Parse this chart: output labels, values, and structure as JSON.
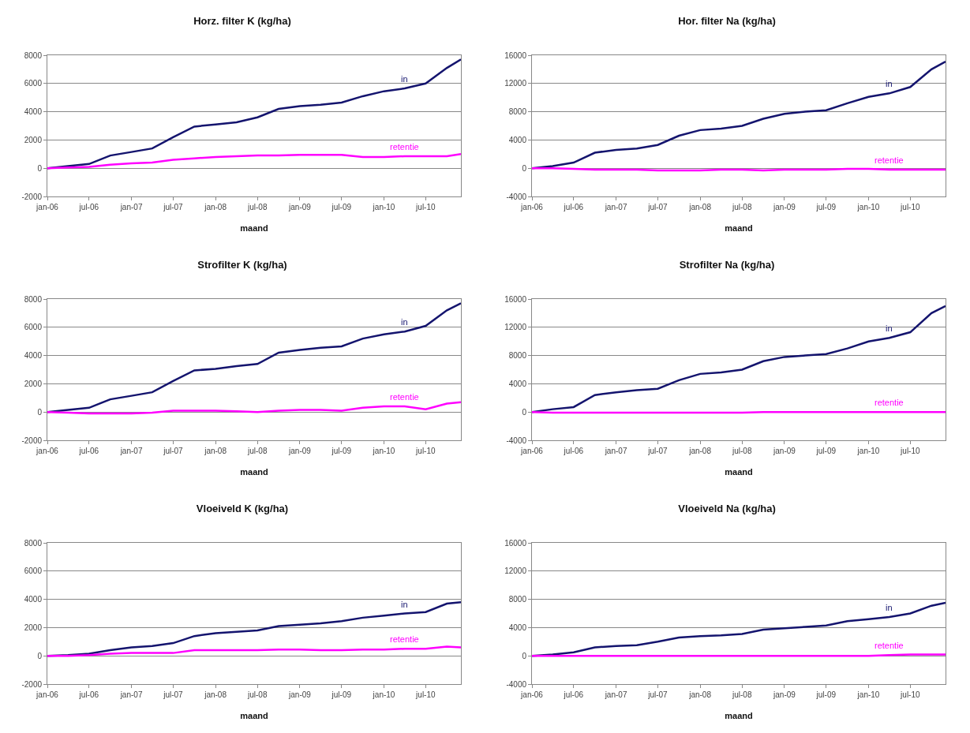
{
  "chart_data": [
    {
      "type": "line",
      "title": "Horz. filter K (kg/ha)",
      "xlabel": "maand",
      "grid": "y",
      "x": [
        "2006-01",
        "2006-04",
        "2006-07",
        "2006-10",
        "2007-01",
        "2007-04",
        "2007-07",
        "2007-10",
        "2008-01",
        "2008-04",
        "2008-07",
        "2008-10",
        "2009-01",
        "2009-04",
        "2009-07",
        "2009-10",
        "2010-01",
        "2010-04",
        "2010-07",
        "2010-10",
        "2010-12"
      ],
      "xlim": [
        "2006-01",
        "2010-12"
      ],
      "xticks": [
        {
          "value": "2006-01",
          "label": "jan-06"
        },
        {
          "value": "2006-07",
          "label": "jul-06"
        },
        {
          "value": "2007-01",
          "label": "jan-07"
        },
        {
          "value": "2007-07",
          "label": "jul-07"
        },
        {
          "value": "2008-01",
          "label": "jan-08"
        },
        {
          "value": "2008-07",
          "label": "jul-08"
        },
        {
          "value": "2009-01",
          "label": "jan-09"
        },
        {
          "value": "2009-07",
          "label": "jul-09"
        },
        {
          "value": "2010-01",
          "label": "jan-10"
        },
        {
          "value": "2010-07",
          "label": "jul-10"
        }
      ],
      "ylim": [
        -2000,
        8000
      ],
      "yticks": [
        -2000,
        0,
        2000,
        4000,
        6000,
        8000
      ],
      "series": [
        {
          "name": "in",
          "color": "#14146e",
          "values": [
            0,
            150,
            300,
            900,
            1150,
            1400,
            2200,
            2950,
            3100,
            3250,
            3600,
            4200,
            4400,
            4500,
            4650,
            5100,
            5450,
            5650,
            6000,
            7100,
            7700
          ]
        },
        {
          "name": "retentie",
          "color": "#ff00ff",
          "values": [
            0,
            50,
            100,
            250,
            350,
            400,
            600,
            700,
            800,
            850,
            900,
            900,
            950,
            950,
            950,
            800,
            800,
            850,
            850,
            850,
            1000
          ]
        }
      ]
    },
    {
      "type": "line",
      "title": "Hor. filter Na (kg/ha)",
      "xlabel": "maand",
      "grid": "y",
      "x": [
        "2006-01",
        "2006-04",
        "2006-07",
        "2006-10",
        "2007-01",
        "2007-04",
        "2007-07",
        "2007-10",
        "2008-01",
        "2008-04",
        "2008-07",
        "2008-10",
        "2009-01",
        "2009-04",
        "2009-07",
        "2009-10",
        "2010-01",
        "2010-04",
        "2010-07",
        "2010-10",
        "2010-12"
      ],
      "xlim": [
        "2006-01",
        "2010-12"
      ],
      "xticks": [
        {
          "value": "2006-01",
          "label": "jan-06"
        },
        {
          "value": "2006-07",
          "label": "jul-06"
        },
        {
          "value": "2007-01",
          "label": "jan-07"
        },
        {
          "value": "2007-07",
          "label": "jul-07"
        },
        {
          "value": "2008-01",
          "label": "jan-08"
        },
        {
          "value": "2008-07",
          "label": "jul-08"
        },
        {
          "value": "2009-01",
          "label": "jan-09"
        },
        {
          "value": "2009-07",
          "label": "jul-09"
        },
        {
          "value": "2010-01",
          "label": "jan-10"
        },
        {
          "value": "2010-07",
          "label": "jul-10"
        }
      ],
      "ylim": [
        -4000,
        16000
      ],
      "yticks": [
        -4000,
        0,
        4000,
        8000,
        12000,
        16000
      ],
      "series": [
        {
          "name": "in",
          "color": "#14146e",
          "values": [
            0,
            300,
            800,
            2200,
            2600,
            2800,
            3300,
            4600,
            5400,
            5600,
            6000,
            7000,
            7700,
            8000,
            8200,
            9200,
            10100,
            10600,
            11500,
            14000,
            15100
          ]
        },
        {
          "name": "retentie",
          "color": "#ff00ff",
          "values": [
            0,
            0,
            -100,
            -200,
            -200,
            -200,
            -300,
            -300,
            -300,
            -200,
            -200,
            -300,
            -200,
            -200,
            -200,
            -100,
            -100,
            -200,
            -200,
            -200,
            -200
          ]
        }
      ]
    },
    {
      "type": "line",
      "title": "Strofilter K (kg/ha)",
      "xlabel": "maand",
      "grid": "y",
      "x": [
        "2006-01",
        "2006-04",
        "2006-07",
        "2006-10",
        "2007-01",
        "2007-04",
        "2007-07",
        "2007-10",
        "2008-01",
        "2008-04",
        "2008-07",
        "2008-10",
        "2009-01",
        "2009-04",
        "2009-07",
        "2009-10",
        "2010-01",
        "2010-04",
        "2010-07",
        "2010-10",
        "2010-12"
      ],
      "xlim": [
        "2006-01",
        "2010-12"
      ],
      "xticks": [
        {
          "value": "2006-01",
          "label": "jan-06"
        },
        {
          "value": "2006-07",
          "label": "jul-06"
        },
        {
          "value": "2007-01",
          "label": "jan-07"
        },
        {
          "value": "2007-07",
          "label": "jul-07"
        },
        {
          "value": "2008-01",
          "label": "jan-08"
        },
        {
          "value": "2008-07",
          "label": "jul-08"
        },
        {
          "value": "2009-01",
          "label": "jan-09"
        },
        {
          "value": "2009-07",
          "label": "jul-09"
        },
        {
          "value": "2010-01",
          "label": "jan-10"
        },
        {
          "value": "2010-07",
          "label": "jul-10"
        }
      ],
      "ylim": [
        -2000,
        8000
      ],
      "yticks": [
        -2000,
        0,
        2000,
        4000,
        6000,
        8000
      ],
      "series": [
        {
          "name": "in",
          "color": "#14146e",
          "values": [
            0,
            150,
            300,
            900,
            1150,
            1400,
            2200,
            2950,
            3050,
            3250,
            3400,
            4200,
            4400,
            4550,
            4650,
            5200,
            5500,
            5700,
            6100,
            7200,
            7700
          ]
        },
        {
          "name": "retentie",
          "color": "#ff00ff",
          "values": [
            0,
            -50,
            -100,
            -100,
            -100,
            -50,
            100,
            100,
            100,
            50,
            0,
            100,
            150,
            150,
            100,
            300,
            400,
            400,
            200,
            600,
            700
          ]
        }
      ]
    },
    {
      "type": "line",
      "title": "Strofilter Na (kg/ha)",
      "xlabel": "maand",
      "grid": "y",
      "x": [
        "2006-01",
        "2006-04",
        "2006-07",
        "2006-10",
        "2007-01",
        "2007-04",
        "2007-07",
        "2007-10",
        "2008-01",
        "2008-04",
        "2008-07",
        "2008-10",
        "2009-01",
        "2009-04",
        "2009-07",
        "2009-10",
        "2010-01",
        "2010-04",
        "2010-07",
        "2010-10",
        "2010-12"
      ],
      "xlim": [
        "2006-01",
        "2010-12"
      ],
      "xticks": [
        {
          "value": "2006-01",
          "label": "jan-06"
        },
        {
          "value": "2006-07",
          "label": "jul-06"
        },
        {
          "value": "2007-01",
          "label": "jan-07"
        },
        {
          "value": "2007-07",
          "label": "jul-07"
        },
        {
          "value": "2008-01",
          "label": "jan-08"
        },
        {
          "value": "2008-07",
          "label": "jul-08"
        },
        {
          "value": "2009-01",
          "label": "jan-09"
        },
        {
          "value": "2009-07",
          "label": "jul-09"
        },
        {
          "value": "2010-01",
          "label": "jan-10"
        },
        {
          "value": "2010-07",
          "label": "jul-10"
        }
      ],
      "ylim": [
        -4000,
        16000
      ],
      "yticks": [
        -4000,
        0,
        4000,
        8000,
        12000,
        16000
      ],
      "series": [
        {
          "name": "in",
          "color": "#14146e",
          "values": [
            0,
            400,
            700,
            2400,
            2800,
            3100,
            3300,
            4500,
            5400,
            5600,
            6000,
            7200,
            7800,
            8000,
            8200,
            9000,
            10000,
            10500,
            11300,
            14000,
            15000
          ]
        },
        {
          "name": "retentie",
          "color": "#ff00ff",
          "values": [
            0,
            -100,
            -100,
            -100,
            -100,
            -100,
            -100,
            -100,
            -100,
            -100,
            -100,
            0,
            0,
            0,
            0,
            0,
            0,
            0,
            0,
            0,
            0
          ]
        }
      ]
    },
    {
      "type": "line",
      "title": "Vloeiveld K (kg/ha)",
      "xlabel": "maand",
      "grid": "y",
      "x": [
        "2006-01",
        "2006-04",
        "2006-07",
        "2006-10",
        "2007-01",
        "2007-04",
        "2007-07",
        "2007-10",
        "2008-01",
        "2008-04",
        "2008-07",
        "2008-10",
        "2009-01",
        "2009-04",
        "2009-07",
        "2009-10",
        "2010-01",
        "2010-04",
        "2010-07",
        "2010-10",
        "2010-12"
      ],
      "xlim": [
        "2006-01",
        "2010-12"
      ],
      "xticks": [
        {
          "value": "2006-01",
          "label": "jan-06"
        },
        {
          "value": "2006-07",
          "label": "jul-06"
        },
        {
          "value": "2007-01",
          "label": "jan-07"
        },
        {
          "value": "2007-07",
          "label": "jul-07"
        },
        {
          "value": "2008-01",
          "label": "jan-08"
        },
        {
          "value": "2008-07",
          "label": "jul-08"
        },
        {
          "value": "2009-01",
          "label": "jan-09"
        },
        {
          "value": "2009-07",
          "label": "jul-09"
        },
        {
          "value": "2010-01",
          "label": "jan-10"
        },
        {
          "value": "2010-07",
          "label": "jul-10"
        }
      ],
      "ylim": [
        -2000,
        8000
      ],
      "yticks": [
        -2000,
        0,
        2000,
        4000,
        6000,
        8000
      ],
      "series": [
        {
          "name": "in",
          "color": "#14146e",
          "values": [
            0,
            50,
            150,
            400,
            600,
            700,
            900,
            1400,
            1600,
            1700,
            1800,
            2100,
            2200,
            2300,
            2450,
            2700,
            2850,
            3000,
            3100,
            3700,
            3800
          ]
        },
        {
          "name": "retentie",
          "color": "#ff00ff",
          "values": [
            0,
            0,
            50,
            150,
            200,
            200,
            200,
            400,
            400,
            400,
            400,
            450,
            450,
            400,
            400,
            450,
            450,
            500,
            500,
            650,
            600
          ]
        }
      ]
    },
    {
      "type": "line",
      "title": "Vloeiveld Na (kg/ha)",
      "xlabel": "maand",
      "grid": "y",
      "x": [
        "2006-01",
        "2006-04",
        "2006-07",
        "2006-10",
        "2007-01",
        "2007-04",
        "2007-07",
        "2007-10",
        "2008-01",
        "2008-04",
        "2008-07",
        "2008-10",
        "2009-01",
        "2009-04",
        "2009-07",
        "2009-10",
        "2010-01",
        "2010-04",
        "2010-07",
        "2010-10",
        "2010-12"
      ],
      "xlim": [
        "2006-01",
        "2010-12"
      ],
      "xticks": [
        {
          "value": "2006-01",
          "label": "jan-06"
        },
        {
          "value": "2006-07",
          "label": "jul-06"
        },
        {
          "value": "2007-01",
          "label": "jan-07"
        },
        {
          "value": "2007-07",
          "label": "jul-07"
        },
        {
          "value": "2008-01",
          "label": "jan-08"
        },
        {
          "value": "2008-07",
          "label": "jul-08"
        },
        {
          "value": "2009-01",
          "label": "jan-09"
        },
        {
          "value": "2009-07",
          "label": "jul-09"
        },
        {
          "value": "2010-01",
          "label": "jan-10"
        },
        {
          "value": "2010-07",
          "label": "jul-10"
        }
      ],
      "ylim": [
        -4000,
        16000
      ],
      "yticks": [
        -4000,
        0,
        4000,
        8000,
        12000,
        16000
      ],
      "series": [
        {
          "name": "in",
          "color": "#14146e",
          "values": [
            0,
            200,
            500,
            1200,
            1400,
            1500,
            2000,
            2600,
            2800,
            2900,
            3100,
            3700,
            3900,
            4100,
            4300,
            4900,
            5200,
            5500,
            6000,
            7100,
            7500
          ]
        },
        {
          "name": "retentie",
          "color": "#ff00ff",
          "values": [
            0,
            0,
            0,
            0,
            0,
            0,
            0,
            0,
            0,
            0,
            0,
            0,
            0,
            0,
            0,
            0,
            0,
            100,
            200,
            200,
            200
          ]
        }
      ]
    }
  ]
}
